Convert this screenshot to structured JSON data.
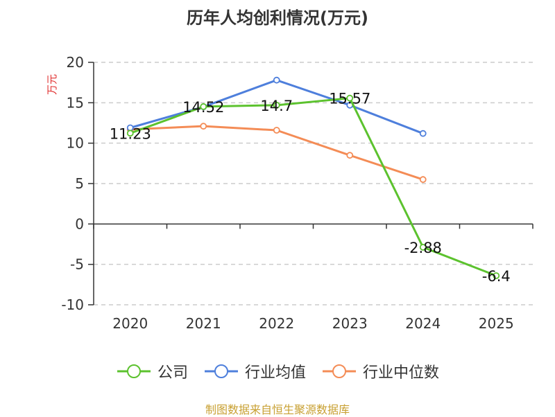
{
  "chart_data": {
    "type": "line",
    "title": "历年人均创利情况(万元)",
    "ylabel": "万元",
    "xlabel": "",
    "categories": [
      "2020",
      "2021",
      "2022",
      "2023",
      "2024",
      "2025"
    ],
    "ylim": [
      -10,
      20
    ],
    "yticks": [
      "20",
      "15",
      "10",
      "5",
      "0",
      "-5",
      "-10"
    ],
    "grid": true,
    "legend_position": "bottom",
    "series": [
      {
        "name": "公司",
        "color": "#5cc22e",
        "values": [
          11.23,
          14.52,
          14.7,
          15.57,
          -2.88,
          -6.4
        ],
        "labels": [
          "11.23",
          "14.52",
          "14.7",
          "15.57",
          "-2.88",
          "-6.4"
        ]
      },
      {
        "name": "行业均值",
        "color": "#4e7fdc",
        "values": [
          11.9,
          14.5,
          17.8,
          14.7,
          11.2,
          null
        ]
      },
      {
        "name": "行业中位数",
        "color": "#f48c56",
        "values": [
          11.7,
          12.1,
          11.6,
          8.5,
          5.5,
          null
        ]
      }
    ]
  },
  "source_note": "制图数据来自恒生聚源数据库"
}
